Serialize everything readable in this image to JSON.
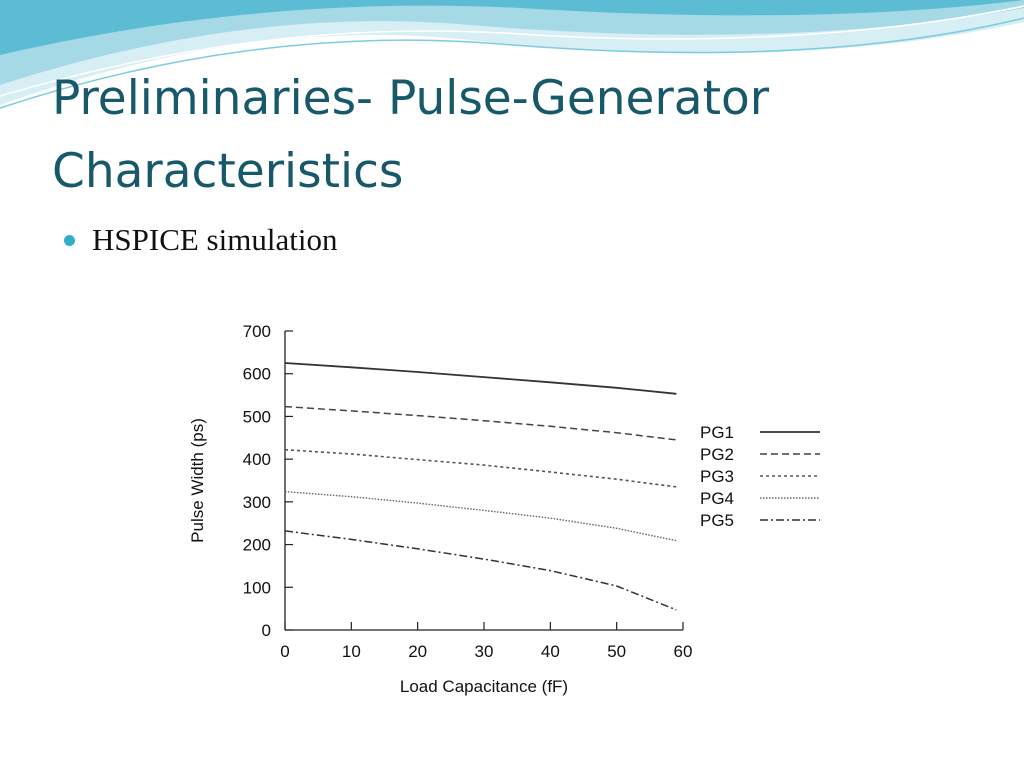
{
  "slide": {
    "title": "Preliminaries- Pulse-Generator Characteristics",
    "bullet": "HSPICE simulation"
  },
  "theme": {
    "title_color": "#17596b",
    "bullet_color": "#2fb0c8"
  },
  "chart_data": {
    "type": "line",
    "xlabel": "Load Capacitance (fF)",
    "ylabel": "Pulse Width (ps)",
    "xlim": [
      0,
      60
    ],
    "ylim": [
      0,
      700
    ],
    "xticks": [
      0,
      10,
      20,
      30,
      40,
      50,
      60
    ],
    "yticks": [
      0,
      100,
      200,
      300,
      400,
      500,
      600,
      700
    ],
    "grid": false,
    "legend_position": "right",
    "x": [
      0,
      10,
      20,
      30,
      40,
      50,
      59
    ],
    "series": [
      {
        "name": "PG1",
        "style": "solid",
        "values": [
          625,
          615,
          604,
          592,
          580,
          567,
          553
        ]
      },
      {
        "name": "PG2",
        "style": "dashed",
        "values": [
          523,
          513,
          502,
          490,
          477,
          462,
          445
        ]
      },
      {
        "name": "PG3",
        "style": "dotted",
        "values": [
          422,
          412,
          399,
          386,
          370,
          353,
          335
        ]
      },
      {
        "name": "PG4",
        "style": "dotted-fine",
        "values": [
          324,
          312,
          297,
          280,
          262,
          238,
          209
        ]
      },
      {
        "name": "PG5",
        "style": "dashdot",
        "values": [
          232,
          212,
          190,
          166,
          139,
          103,
          47
        ]
      }
    ]
  }
}
